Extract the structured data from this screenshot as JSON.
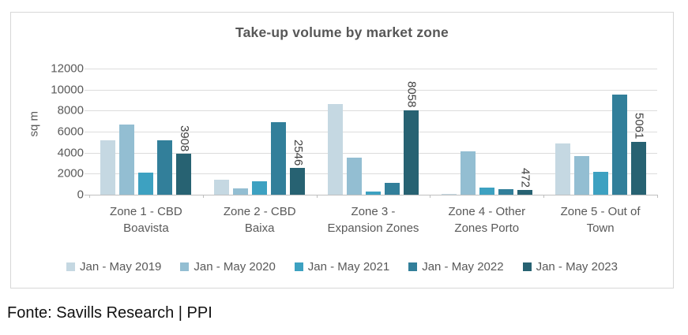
{
  "chart": {
    "title": "Take-up volume by market zone",
    "y_axis_title": "sq m",
    "footer": "Fonte: Savills Research | PPI"
  },
  "chart_data": {
    "type": "bar",
    "title": "Take-up volume by market zone",
    "xlabel": "",
    "ylabel": "sq m",
    "ylim": [
      0,
      12000
    ],
    "y_ticks": [
      0,
      2000,
      4000,
      6000,
      8000,
      10000,
      12000
    ],
    "grid": true,
    "legend_position": "bottom",
    "categories": [
      "Zone 1 - CBD Boavista",
      "Zone 2 - CBD Baixa",
      "Zone 3 - Expansion Zones",
      "Zone 4 - Other Zones Porto",
      "Zone 5  - Out of Town"
    ],
    "series": [
      {
        "name": "Jan - May 2019",
        "color": "#c5d8e2",
        "values": [
          5200,
          1450,
          8600,
          80,
          4850
        ]
      },
      {
        "name": "Jan - May 2020",
        "color": "#93bed2",
        "values": [
          6700,
          600,
          3500,
          4150,
          3700
        ]
      },
      {
        "name": "Jan - May 2021",
        "color": "#3da1c1",
        "values": [
          2100,
          1300,
          270,
          680,
          2150
        ]
      },
      {
        "name": "Jan - May 2022",
        "color": "#327f9a",
        "values": [
          5200,
          6900,
          1150,
          500,
          9500
        ]
      },
      {
        "name": "Jan - May 2023",
        "color": "#276272",
        "values": [
          3908,
          2546,
          8058,
          472,
          5061
        ]
      }
    ],
    "data_labels": {
      "series": "Jan - May 2023",
      "values": [
        "3908",
        "2546",
        "8058",
        "472",
        "5061"
      ]
    }
  }
}
